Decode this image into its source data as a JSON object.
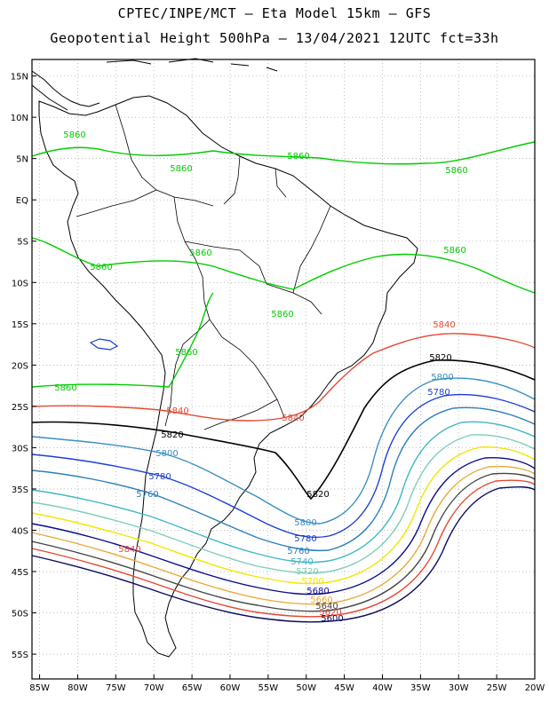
{
  "header": {
    "line1": "CPTEC/INPE/MCT –  Eta Model 15km – GFS",
    "line2": "Geopotential Height 500hPa – 13/04/2021 12UTC fct=33h"
  },
  "axes": {
    "lat_labels": [
      "15N",
      "10N",
      "5N",
      "EQ",
      "5S",
      "10S",
      "15S",
      "20S",
      "25S",
      "30S",
      "35S",
      "40S",
      "45S",
      "50S",
      "55S"
    ],
    "lat_values": [
      15,
      10,
      5,
      0,
      -5,
      -10,
      -15,
      -20,
      -25,
      -30,
      -35,
      -40,
      -45,
      -50,
      -55
    ],
    "lon_labels": [
      "85W",
      "80W",
      "75W",
      "70W",
      "65W",
      "60W",
      "55W",
      "50W",
      "45W",
      "40W",
      "35W",
      "30W",
      "25W",
      "20W"
    ],
    "lon_values": [
      -85,
      -80,
      -75,
      -70,
      -65,
      -60,
      -55,
      -50,
      -45,
      -40,
      -35,
      -30,
      -25,
      -20
    ],
    "lon_range": [
      -86,
      -20
    ],
    "lat_range": [
      -58,
      17
    ],
    "grid": true
  },
  "contour_labels": {
    "c5860": "5860",
    "c5840": "5840",
    "c5820": "5820",
    "c5800": "5800",
    "c5780": "5780",
    "c5760": "5760",
    "c5740": "5740",
    "c5720": "5720",
    "c5700": "5700",
    "c5680": "5680",
    "c5660": "5660",
    "c5640": "5640",
    "c5620": "5620",
    "c5600": "5600"
  },
  "colors": {
    "c5860": "#00cc00",
    "c5840": "#e34a33",
    "c5820": "#000000",
    "c5800": "#3a8fc0",
    "c5780": "#1a3fd4",
    "c5760": "#2c7fb8",
    "c5740": "#41b6c4",
    "c5720": "#7fcdbb",
    "c5700": "#f2e600",
    "c5680": "#0a0a90",
    "c5660": "#e8a83a",
    "c5640": "#444444",
    "c5620": "#e34a33",
    "c5600": "#0a0a60"
  }
}
